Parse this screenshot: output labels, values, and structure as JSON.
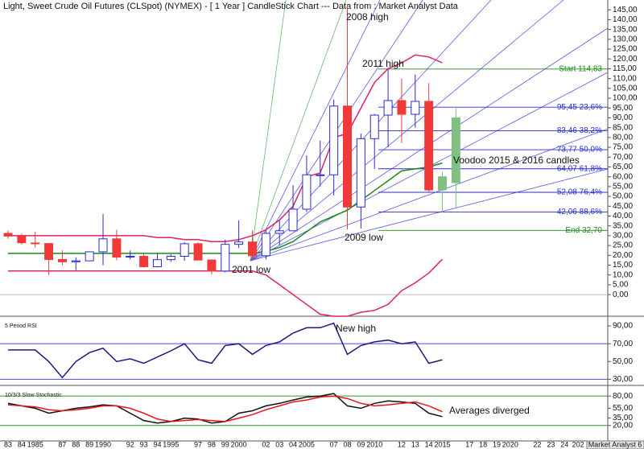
{
  "title": "Light, Sweet Crude Oil Futures (CLSpot) (NYMEX) -  [ 1 Year ] CandleStick Chart --- Data from : Market Analyst Data",
  "footer": "Market Analyst 6",
  "chart_data": [
    {
      "type": "candlestick",
      "categories": [
        "83",
        "84",
        "1985",
        null,
        "87",
        "88",
        "89",
        "1990",
        null,
        "92",
        "93",
        "94",
        "1995",
        null,
        "97",
        "98",
        "99",
        "2000",
        null,
        "02",
        "03",
        "04",
        "2005",
        null,
        "07",
        "08",
        "09",
        "2010",
        null,
        "12",
        "13",
        "14",
        "2015",
        null,
        "17",
        "18",
        "19",
        "2020",
        null,
        "22",
        "23",
        "24",
        "202"
      ],
      "open": [
        31.2,
        29.8,
        26.3,
        26.0,
        17.9,
        16.7,
        17.2,
        21.8,
        28.4,
        19.1,
        19.5,
        14.2,
        17.8,
        19.5,
        25.9,
        17.6,
        12.0,
        25.6,
        26.8,
        19.8,
        31.2,
        32.5,
        43.5,
        61.0,
        61.0,
        96.0,
        44.6,
        79.4,
        91.4,
        98.8,
        91.8,
        98.4,
        53.3,
        57.0,
        null,
        null,
        null,
        null,
        null,
        null,
        null,
        null,
        null
      ],
      "high": [
        32.5,
        31.0,
        32.0,
        26.0,
        22.5,
        19.0,
        22.0,
        41.0,
        33.0,
        22.5,
        21.0,
        21.0,
        20.5,
        26.7,
        26.6,
        18.0,
        28.0,
        37.8,
        32.7,
        32.7,
        37.8,
        55.7,
        70.9,
        78.4,
        99.3,
        147.3,
        82.0,
        92.0,
        114.8,
        110.0,
        112.0,
        107.7,
        62.6,
        95.0,
        null,
        null,
        null,
        null,
        null,
        null,
        null,
        null,
        null
      ],
      "low": [
        28.5,
        25.5,
        24.0,
        10.0,
        15.0,
        12.5,
        17.0,
        15.0,
        17.5,
        17.9,
        13.8,
        13.8,
        16.7,
        17.2,
        17.6,
        10.3,
        11.3,
        23.7,
        17.1,
        17.9,
        25.0,
        32.2,
        42.0,
        55.0,
        50.5,
        33.2,
        33.6,
        64.0,
        75.0,
        77.3,
        85.0,
        52.4,
        42.0,
        44.0,
        null,
        null,
        null,
        null,
        null,
        null,
        null,
        null,
        null
      ],
      "close": [
        29.8,
        26.4,
        26.0,
        17.9,
        16.7,
        17.2,
        21.8,
        28.4,
        19.1,
        19.5,
        14.2,
        17.8,
        19.5,
        25.9,
        17.6,
        12.0,
        25.6,
        26.8,
        19.8,
        31.2,
        32.5,
        43.5,
        61.0,
        61.0,
        96.0,
        44.6,
        79.4,
        91.4,
        98.8,
        91.8,
        98.4,
        53.3,
        60.0,
        90.0,
        null,
        null,
        null,
        null,
        null,
        null,
        null,
        null,
        null
      ],
      "colors": [
        "#f03a3a",
        "#f03a3a",
        "#f03a3a",
        "#f03a3a",
        "#f03a3a",
        "#ffffff",
        "#ffffff",
        "#ffffff",
        "#f03a3a",
        "#ffffff",
        "#f03a3a",
        "#ffffff",
        "#ffffff",
        "#ffffff",
        "#f03a3a",
        "#f03a3a",
        "#ffffff",
        "#ffffff",
        "#f03a3a",
        "#ffffff",
        "#ffffff",
        "#ffffff",
        "#ffffff",
        "#ffffff",
        "#ffffff",
        "#f03a3a",
        "#ffffff",
        "#ffffff",
        "#ffffff",
        "#f03a3a",
        "#ffffff",
        "#f03a3a",
        "#80c080",
        "#80c080",
        null,
        null,
        null,
        null,
        null,
        null,
        null,
        null,
        null
      ],
      "outline_color": "#2b2bd0",
      "series": [
        {
          "color": "#e0206a",
          "values": [
            30,
            30,
            30,
            30,
            30,
            30,
            30,
            30,
            30,
            30,
            30,
            29,
            29,
            28,
            28,
            27,
            27,
            28,
            30,
            33,
            38,
            45,
            60,
            62,
            80,
            82,
            95,
            108,
            115,
            118,
            122,
            121,
            118,
            null,
            null,
            null,
            null,
            null,
            null,
            null,
            null,
            null,
            null
          ]
        },
        {
          "color": "#1a8a1a",
          "values": [
            21,
            21,
            21,
            21,
            21,
            21,
            21,
            21,
            21,
            21,
            21,
            21,
            21,
            21,
            21,
            21,
            21,
            21,
            21,
            22,
            24,
            27,
            32,
            37,
            40,
            43,
            48,
            53,
            58,
            63,
            64,
            65,
            67,
            null,
            null,
            null,
            null,
            null,
            null,
            null,
            null,
            null,
            null
          ]
        },
        {
          "color": "#e0206a",
          "values": [
            12,
            12,
            12,
            12,
            12,
            12,
            12,
            12,
            12,
            12,
            12,
            12,
            12,
            12,
            12,
            12,
            12,
            12,
            12,
            10,
            5,
            0,
            -5,
            -10,
            -11,
            -11,
            -9,
            -8,
            -5,
            2,
            6,
            11,
            18,
            null,
            null,
            null,
            null,
            null,
            null,
            null,
            null,
            null,
            null
          ]
        }
      ],
      "levels": [
        {
          "value": 114.83,
          "label": "Start 114,83",
          "color": "#1a8a1a"
        },
        {
          "value": 95.45,
          "label": "95,45 23,6%",
          "color": "#2b2bd0"
        },
        {
          "value": 83.46,
          "label": "83,46 38,2%",
          "color": "#2b2bd0"
        },
        {
          "value": 73.77,
          "label": "73,77 50,0%",
          "color": "#2b2bd0"
        },
        {
          "value": 64.07,
          "label": "64,07 61,8%",
          "color": "#2b2bd0"
        },
        {
          "value": 52.08,
          "label": "52,08 76,4%",
          "color": "#2b2bd0"
        },
        {
          "value": 42.06,
          "label": "42,06 88,6%",
          "color": "#2b2bd0"
        },
        {
          "value": 32.7,
          "label": "End 32,70",
          "color": "#1a8a1a"
        }
      ],
      "annotations": [
        "2008 high",
        "2011 high",
        "Voodoo 2015 & 2016 candles",
        "2009 low",
        "2001 low"
      ],
      "ylim": [
        -10.6,
        150
      ],
      "yticks": [
        {
          "value": 0,
          "label": "0,00"
        },
        {
          "value": 5,
          "label": "5,00"
        },
        {
          "value": 10,
          "label": "10,00"
        },
        {
          "value": 15,
          "label": "15,00"
        },
        {
          "value": 20,
          "label": "20,00"
        },
        {
          "value": 25,
          "label": "25,00"
        },
        {
          "value": 30,
          "label": "30,00"
        },
        {
          "value": 35,
          "label": "35,00"
        },
        {
          "value": 40,
          "label": "40,00"
        },
        {
          "value": 45,
          "label": "45,00"
        },
        {
          "value": 50,
          "label": "50,00"
        },
        {
          "value": 55,
          "label": "55,00"
        },
        {
          "value": 60,
          "label": "60,00"
        },
        {
          "value": 65,
          "label": "65,00"
        },
        {
          "value": 70,
          "label": "70,00"
        },
        {
          "value": 75,
          "label": "75,00"
        },
        {
          "value": 80,
          "label": "80,00"
        },
        {
          "value": 85,
          "label": "85,00"
        },
        {
          "value": 90,
          "label": "90,00"
        },
        {
          "value": 95,
          "label": "95,00"
        },
        {
          "value": 100,
          "label": "100,00"
        },
        {
          "value": 105,
          "label": "105,00"
        },
        {
          "value": 110,
          "label": "110,00"
        },
        {
          "value": 115,
          "label": "115,00"
        },
        {
          "value": 120,
          "label": "120,00"
        },
        {
          "value": 125,
          "label": "125,00"
        },
        {
          "value": 130,
          "label": "130,00"
        },
        {
          "value": 135,
          "label": "135,00"
        },
        {
          "value": 140,
          "label": "140,00"
        },
        {
          "value": 145,
          "label": "145,00"
        }
      ],
      "zero_line": true
    },
    {
      "type": "line",
      "label": "5 Period RSI",
      "series": [
        {
          "color": "#1a1a7a",
          "values": [
            63,
            63,
            63,
            50,
            32,
            50,
            60,
            65,
            50,
            53,
            48,
            55,
            62,
            70,
            52,
            48,
            68,
            70,
            58,
            68,
            72,
            82,
            88,
            88,
            93,
            58,
            68,
            72,
            74,
            70,
            72,
            48,
            52,
            null,
            null,
            null,
            null,
            null,
            null,
            null,
            null,
            null,
            null
          ]
        }
      ],
      "levels": [
        70,
        30
      ],
      "level_color": "#4a4ae0",
      "annotations": [
        "New high"
      ],
      "ylim": [
        24,
        100
      ],
      "yticks": [
        {
          "value": 30,
          "label": "30,00"
        },
        {
          "value": 50,
          "label": "50,00"
        },
        {
          "value": 70,
          "label": "70,00"
        },
        {
          "value": 90,
          "label": "90,00"
        }
      ]
    },
    {
      "type": "line",
      "label": "10/3/3 Slow Stochastic",
      "series": [
        {
          "color": "#111111",
          "values": [
            65,
            60,
            55,
            45,
            50,
            55,
            58,
            62,
            60,
            45,
            30,
            25,
            28,
            35,
            33,
            25,
            28,
            45,
            50,
            60,
            65,
            72,
            78,
            80,
            85,
            60,
            55,
            65,
            70,
            68,
            65,
            45,
            38,
            null,
            null,
            null,
            null,
            null,
            null,
            null,
            null,
            null,
            null
          ]
        },
        {
          "color": "#e01818",
          "values": [
            62,
            60,
            58,
            52,
            50,
            52,
            55,
            60,
            60,
            55,
            45,
            33,
            28,
            30,
            32,
            30,
            28,
            35,
            42,
            52,
            60,
            68,
            72,
            78,
            80,
            75,
            65,
            60,
            62,
            65,
            68,
            60,
            48,
            null,
            null,
            null,
            null,
            null,
            null,
            null,
            null,
            null,
            null
          ]
        }
      ],
      "levels": [
        80,
        20
      ],
      "level_color": "#2a9a2a",
      "annotations": [
        "Averages diverged"
      ],
      "ylim": [
        -10,
        100
      ],
      "yticks": [
        {
          "value": 20,
          "label": "20,00"
        },
        {
          "value": 35,
          "label": "35,00"
        },
        {
          "value": 55,
          "label": "55,00"
        },
        {
          "value": 80,
          "label": "80,00"
        }
      ]
    }
  ]
}
